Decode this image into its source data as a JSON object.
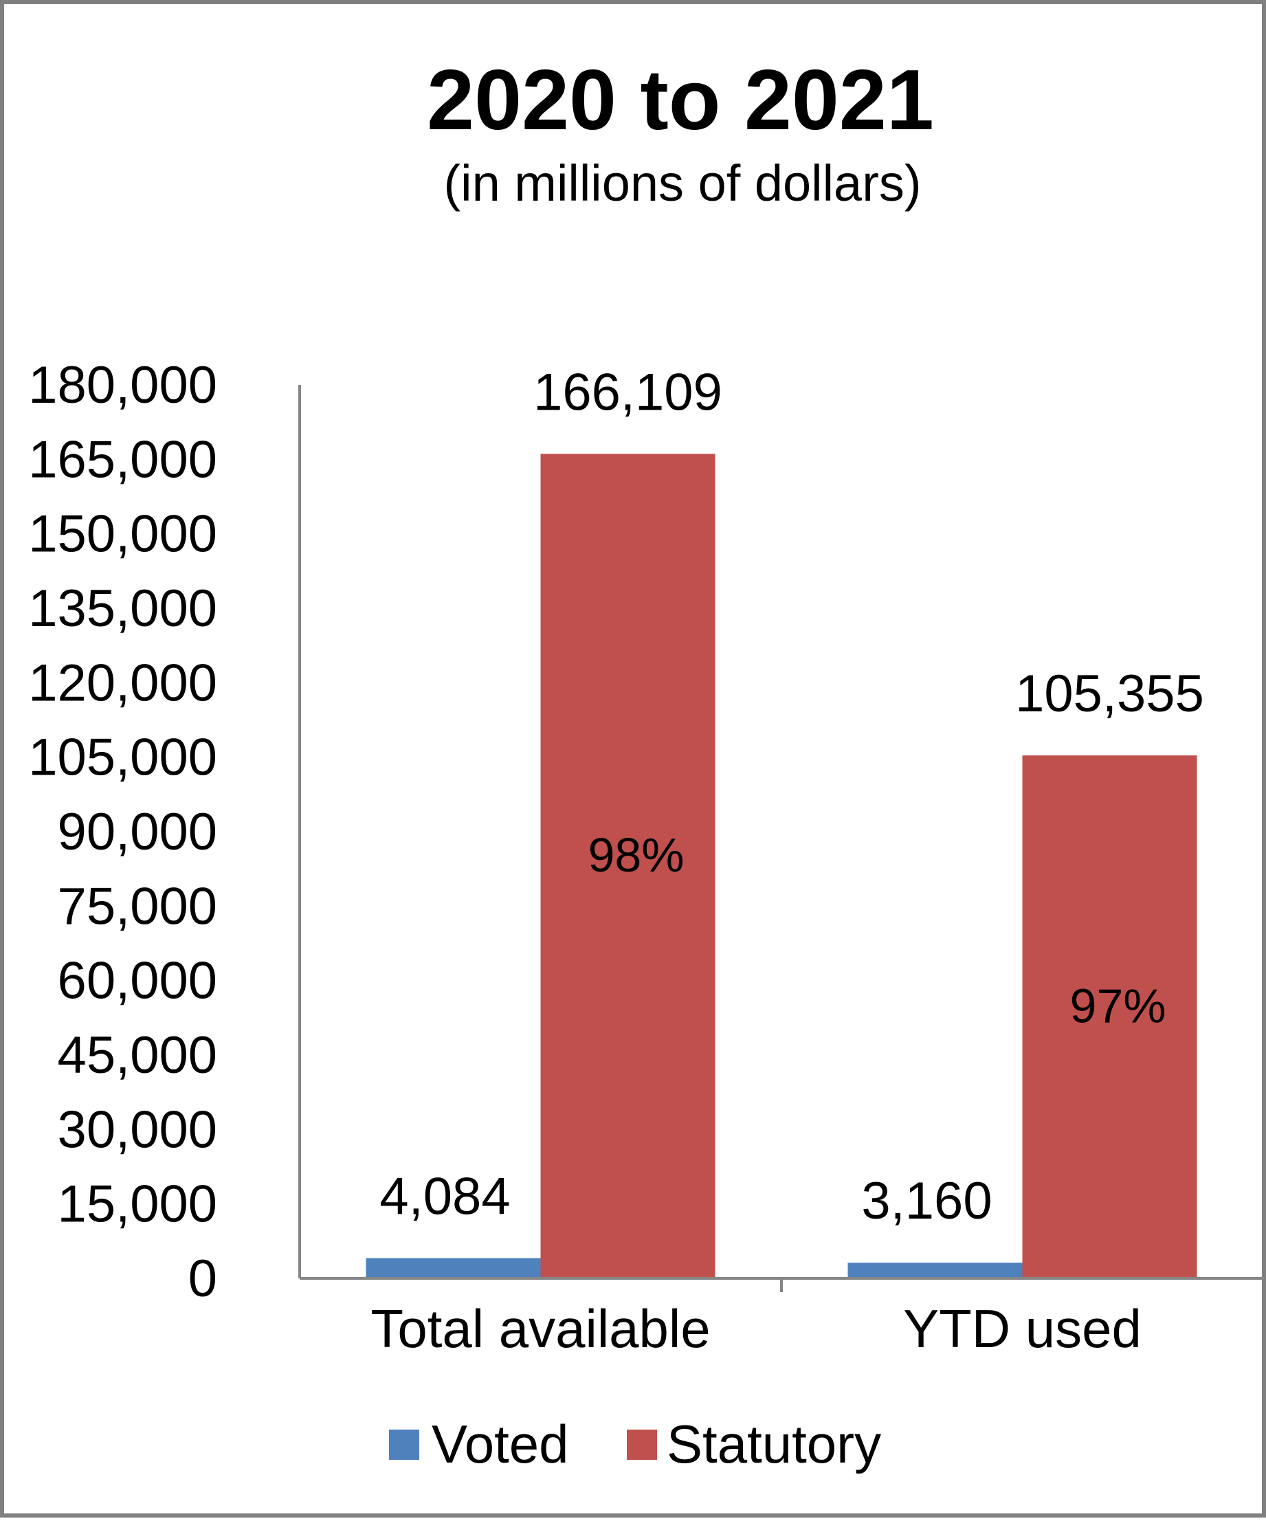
{
  "chart_data": {
    "type": "bar",
    "title": "2020 to 2021",
    "subtitle": "(in millions of dollars)",
    "categories": [
      "Total available",
      "YTD used"
    ],
    "series": [
      {
        "name": "Voted",
        "color": "#4f81bd",
        "values": [
          4084,
          3160
        ],
        "value_labels": [
          "4,084",
          "3,160"
        ]
      },
      {
        "name": "Statutory",
        "color": "#c0504d",
        "values": [
          166109,
          105355
        ],
        "value_labels": [
          "166,109",
          "105,355"
        ],
        "share_labels": [
          "98%",
          "97%"
        ]
      }
    ],
    "ylim": [
      0,
      180000
    ],
    "yticks": [
      0,
      15000,
      30000,
      45000,
      60000,
      75000,
      90000,
      105000,
      120000,
      135000,
      150000,
      165000,
      180000
    ],
    "ytick_labels": [
      "0",
      "15,000",
      "30,000",
      "45,000",
      "60,000",
      "75,000",
      "90,000",
      "105,000",
      "120,000",
      "135,000",
      "150,000",
      "165,000",
      "180,000"
    ],
    "grid": false,
    "legend_position": "bottom"
  }
}
